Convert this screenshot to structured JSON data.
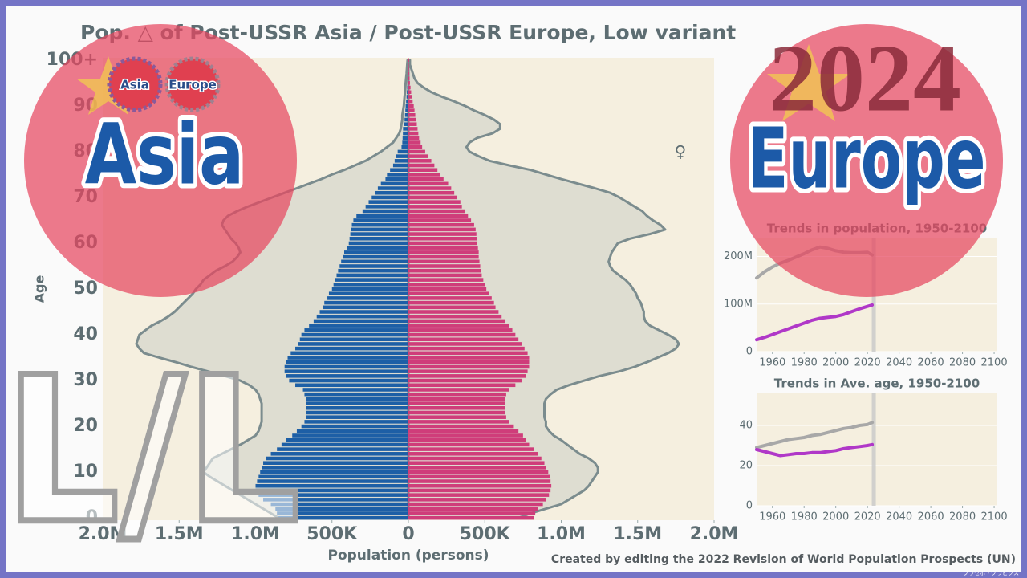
{
  "overlay": {
    "asia": "Asia",
    "europe": "Europe",
    "year": 2024,
    "mark": "L/L",
    "badge_asia": "Asia",
    "badge_europe": "Europe",
    "credit": "Created by editing the 2022 Revision of World Population Prospects (UN)",
    "watermark": "プラセボ・グラビクス"
  },
  "chart_data": [
    {
      "type": "pyramid",
      "title": "Pop. △ of Post-USSR Asia / Post-USSR Europe, Low variant",
      "xlabel": "Population (persons)",
      "ylabel": "Age",
      "categories": [
        "0",
        null,
        null,
        null,
        null,
        null,
        null,
        null,
        null,
        null,
        "10",
        null,
        null,
        null,
        null,
        null,
        null,
        null,
        null,
        null,
        "20",
        null,
        null,
        null,
        null,
        null,
        null,
        null,
        null,
        null,
        "30",
        null,
        null,
        null,
        null,
        null,
        null,
        null,
        null,
        null,
        "40",
        null,
        null,
        null,
        null,
        null,
        null,
        null,
        null,
        null,
        "50",
        null,
        null,
        null,
        null,
        null,
        null,
        null,
        null,
        null,
        "60",
        null,
        null,
        null,
        null,
        null,
        null,
        null,
        null,
        null,
        "70",
        null,
        null,
        null,
        null,
        null,
        null,
        null,
        null,
        null,
        "80",
        null,
        null,
        null,
        null,
        null,
        null,
        null,
        null,
        null,
        "90",
        null,
        null,
        null,
        null,
        null,
        null,
        null,
        null,
        null,
        "100+"
      ],
      "xlim": [
        -2000000,
        2000000
      ],
      "xticks": [
        {
          "value": -2000000,
          "label": "2.0M"
        },
        {
          "value": -1500000,
          "label": "1.5M"
        },
        {
          "value": -1000000,
          "label": "1.0M"
        },
        {
          "value": -500000,
          "label": "500K"
        },
        0,
        {
          "value": 500000,
          "label": "500K"
        },
        {
          "value": 1000000,
          "label": "1.0M"
        },
        {
          "value": 1500000,
          "label": "1.5M"
        },
        {
          "value": 2000000,
          "label": "2.0M"
        }
      ],
      "series": [
        {
          "side": "left",
          "style": "outline",
          "color": "#7b8c8e",
          "values": [
            850000,
            900000,
            950000,
            1000000,
            1050000,
            1100000,
            1150000,
            1200000,
            1250000,
            1300000,
            1340000,
            1320000,
            1300000,
            1280000,
            1220000,
            1160000,
            1100000,
            1050000,
            1000000,
            980000,
            970000,
            960000,
            960000,
            960000,
            960000,
            960000,
            970000,
            980000,
            1000000,
            1040000,
            1100000,
            1200000,
            1310000,
            1420000,
            1520000,
            1630000,
            1730000,
            1760000,
            1780000,
            1770000,
            1760000,
            1720000,
            1680000,
            1620000,
            1570000,
            1530000,
            1500000,
            1470000,
            1440000,
            1410000,
            1390000,
            1360000,
            1340000,
            1300000,
            1260000,
            1200000,
            1150000,
            1120000,
            1100000,
            1110000,
            1130000,
            1160000,
            1180000,
            1200000,
            1220000,
            1210000,
            1180000,
            1120000,
            1050000,
            970000,
            890000,
            810000,
            730000,
            650000,
            570000,
            500000,
            420000,
            350000,
            280000,
            230000,
            180000,
            140000,
            100000,
            80000,
            60000,
            50000,
            45000,
            40000,
            40000,
            35000,
            30000,
            28000,
            25000,
            22000,
            20000,
            18000,
            15000,
            12000,
            10000,
            8000,
            5000
          ]
        },
        {
          "side": "right",
          "style": "outline",
          "color": "#7b8c8e",
          "values": [
            720000,
            800000,
            900000,
            1000000,
            1050000,
            1100000,
            1150000,
            1180000,
            1200000,
            1220000,
            1240000,
            1240000,
            1220000,
            1180000,
            1120000,
            1080000,
            1040000,
            1000000,
            950000,
            920000,
            900000,
            900000,
            890000,
            890000,
            890000,
            890000,
            900000,
            930000,
            970000,
            1050000,
            1150000,
            1250000,
            1380000,
            1480000,
            1560000,
            1630000,
            1700000,
            1750000,
            1770000,
            1750000,
            1700000,
            1640000,
            1580000,
            1550000,
            1540000,
            1540000,
            1530000,
            1520000,
            1500000,
            1490000,
            1470000,
            1450000,
            1420000,
            1380000,
            1340000,
            1320000,
            1310000,
            1320000,
            1330000,
            1350000,
            1370000,
            1450000,
            1580000,
            1680000,
            1650000,
            1600000,
            1560000,
            1530000,
            1480000,
            1430000,
            1380000,
            1320000,
            1220000,
            1110000,
            1000000,
            900000,
            800000,
            660000,
            530000,
            460000,
            400000,
            380000,
            400000,
            450000,
            550000,
            600000,
            600000,
            560000,
            500000,
            430000,
            370000,
            300000,
            220000,
            150000,
            100000,
            60000,
            40000,
            30000,
            20000,
            10000,
            10000
          ]
        },
        {
          "side": "left",
          "style": "bar",
          "color": "#1d5fa6",
          "values": [
            850000,
            860000,
            870000,
            900000,
            950000,
            980000,
            1000000,
            1000000,
            990000,
            980000,
            970000,
            960000,
            950000,
            930000,
            900000,
            860000,
            830000,
            800000,
            760000,
            730000,
            700000,
            680000,
            670000,
            670000,
            670000,
            670000,
            670000,
            680000,
            690000,
            740000,
            780000,
            800000,
            810000,
            810000,
            800000,
            790000,
            770000,
            740000,
            720000,
            710000,
            700000,
            680000,
            650000,
            620000,
            600000,
            580000,
            560000,
            550000,
            530000,
            520000,
            500000,
            490000,
            480000,
            470000,
            460000,
            450000,
            440000,
            430000,
            420000,
            400000,
            390000,
            385000,
            380000,
            375000,
            370000,
            360000,
            340000,
            300000,
            280000,
            260000,
            240000,
            220000,
            200000,
            180000,
            150000,
            140000,
            120000,
            100000,
            90000,
            80000,
            70000,
            45000,
            40000,
            38000,
            36000,
            35000,
            30000,
            25000,
            22000,
            20000,
            18000,
            15000,
            12000,
            10000,
            8000,
            6000,
            5000,
            4000,
            3000,
            2000,
            3000
          ]
        },
        {
          "name": "♀",
          "side": "right",
          "style": "bar",
          "color": "#cf3d7a",
          "values": [
            820000,
            830000,
            850000,
            880000,
            900000,
            920000,
            930000,
            935000,
            930000,
            925000,
            915000,
            900000,
            890000,
            870000,
            850000,
            820000,
            790000,
            770000,
            750000,
            720000,
            690000,
            660000,
            640000,
            630000,
            630000,
            630000,
            630000,
            640000,
            660000,
            700000,
            740000,
            770000,
            780000,
            790000,
            790000,
            790000,
            780000,
            760000,
            740000,
            720000,
            700000,
            680000,
            660000,
            630000,
            610000,
            590000,
            570000,
            560000,
            545000,
            530000,
            510000,
            500000,
            490000,
            480000,
            475000,
            470000,
            465000,
            460000,
            460000,
            455000,
            450000,
            450000,
            445000,
            440000,
            430000,
            410000,
            390000,
            370000,
            350000,
            340000,
            320000,
            300000,
            280000,
            260000,
            230000,
            210000,
            190000,
            170000,
            150000,
            130000,
            110000,
            90000,
            80000,
            70000,
            65000,
            60000,
            55000,
            50000,
            45000,
            40000,
            35000,
            28000,
            22000,
            18000,
            14000,
            10000,
            8000,
            6000,
            4000,
            3000,
            5000
          ]
        }
      ]
    },
    {
      "type": "line",
      "title": "Trends in population, 1950-2100",
      "x": [
        1950,
        1955,
        1960,
        1965,
        1970,
        1975,
        1980,
        1985,
        1990,
        1995,
        2000,
        2005,
        2010,
        2015,
        2020,
        2023
      ],
      "xlim": [
        1950,
        2102
      ],
      "xticks": [
        1960,
        1980,
        2000,
        2020,
        2040,
        2060,
        2080,
        2100
      ],
      "ylim": [
        0,
        238000000
      ],
      "yticks": [
        0,
        {
          "value": 100000000,
          "label": "100M"
        },
        {
          "value": 200000000,
          "label": "200M"
        }
      ],
      "series": [
        {
          "color": "#a8a8a8",
          "values": [
            155000000,
            168000000,
            178000000,
            186000000,
            192000000,
            199000000,
            206000000,
            214000000,
            220000000,
            217000000,
            212000000,
            209000000,
            208000000,
            208000000,
            209000000,
            203000000
          ]
        },
        {
          "color": "#b038c8",
          "values": [
            25000000,
            30000000,
            36000000,
            42000000,
            48000000,
            54000000,
            60000000,
            66000000,
            70000000,
            72000000,
            74000000,
            78000000,
            84000000,
            90000000,
            95000000,
            98000000
          ]
        }
      ]
    },
    {
      "type": "line",
      "title": "Trends in Ave. age, 1950-2100",
      "x": [
        1950,
        1955,
        1960,
        1965,
        1970,
        1975,
        1980,
        1985,
        1990,
        1995,
        2000,
        2005,
        2010,
        2015,
        2020,
        2023
      ],
      "xlim": [
        1950,
        2102
      ],
      "xticks": [
        1960,
        1980,
        2000,
        2020,
        2040,
        2060,
        2080,
        2100
      ],
      "ylim": [
        0,
        56
      ],
      "yticks": [
        0,
        20,
        40
      ],
      "series": [
        {
          "color": "#a8a8a8",
          "values": [
            29,
            30,
            31,
            32,
            33,
            33.5,
            34,
            35,
            35.5,
            36.5,
            37.5,
            38.5,
            39,
            40,
            40.5,
            41.5
          ]
        },
        {
          "color": "#b038c8",
          "values": [
            28,
            27,
            26,
            25,
            25.5,
            26,
            26,
            26.5,
            26.5,
            27,
            27.5,
            28.5,
            29,
            29.5,
            30,
            30.5
          ]
        }
      ]
    }
  ]
}
